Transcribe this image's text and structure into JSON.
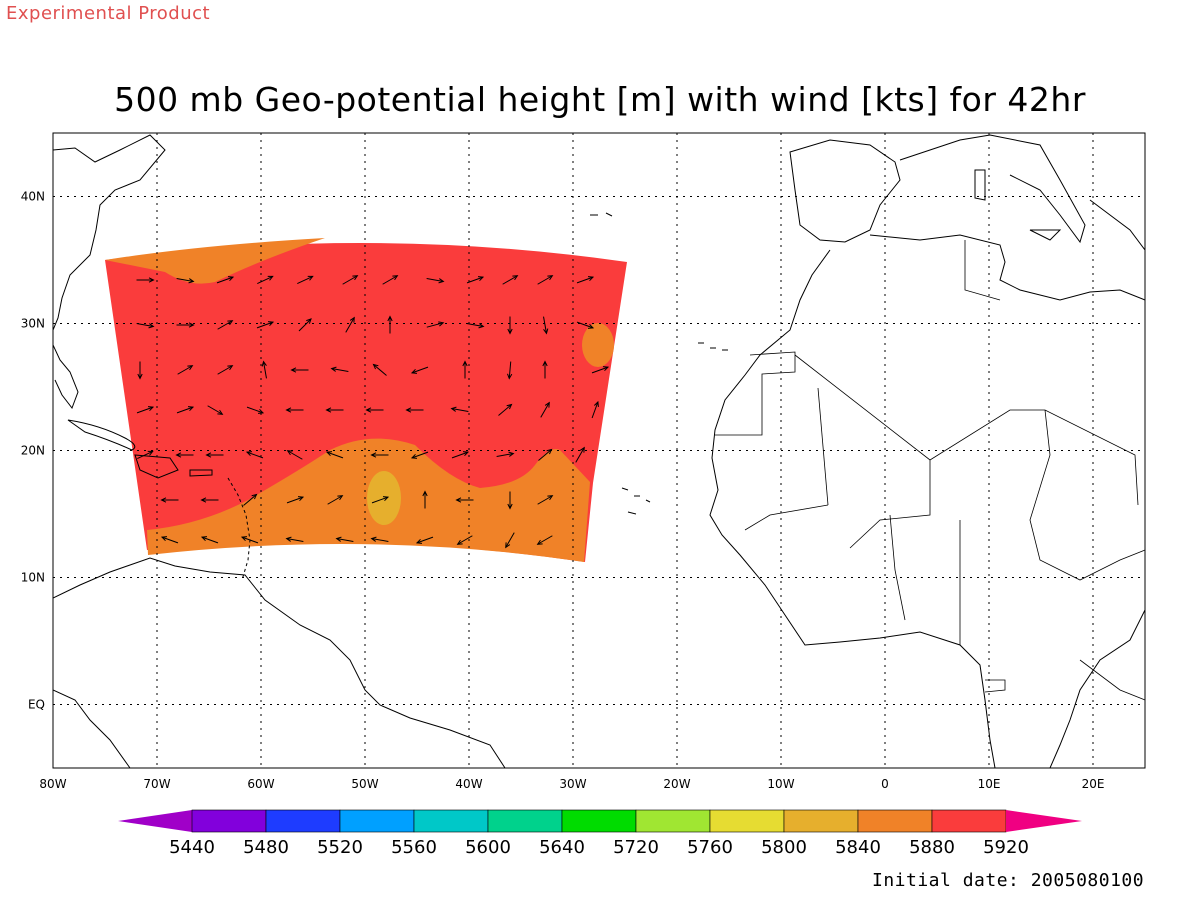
{
  "header": {
    "experimental_label": "Experimental Product",
    "title": "500 mb Geo-potential height [m] with wind [kts] for 42hr"
  },
  "footer": {
    "initial_date": "Initial date: 2005080100"
  },
  "map": {
    "lon_range": [
      -80,
      25
    ],
    "lat_range": [
      -5,
      45
    ],
    "lon_ticks": [
      "80W",
      "70W",
      "60W",
      "50W",
      "40W",
      "30W",
      "20W",
      "10W",
      "0",
      "10E",
      "20E"
    ],
    "lat_ticks": [
      "EQ",
      "10N",
      "20N",
      "30N",
      "40N"
    ],
    "grid": true,
    "fields": {
      "background_height": "5920",
      "southern_band_height": "5880",
      "local_min_height": "5840"
    }
  },
  "colorbar": {
    "labels": [
      "5440",
      "5480",
      "5520",
      "5560",
      "5600",
      "5640",
      "5720",
      "5760",
      "5800",
      "5840",
      "5880",
      "5920"
    ],
    "colors": [
      "#a000c8",
      "#8200dc",
      "#1e3cff",
      "#00a0ff",
      "#00c8c8",
      "#00d28c",
      "#00dc00",
      "#a0e632",
      "#e6dc32",
      "#e6af2d",
      "#f08228",
      "#fa3c3c",
      "#f00082",
      "#e600a0"
    ]
  }
}
